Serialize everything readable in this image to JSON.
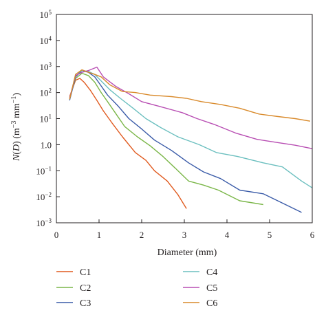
{
  "chart_data": {
    "type": "line",
    "xlabel": "Diameter (mm)",
    "ylabel_parts": {
      "a": "N",
      "b": "(",
      "c": "D",
      "d": ") (m",
      "e": "−3",
      "f": " mm",
      "g": "−1",
      "h": ")"
    },
    "x_range": [
      0,
      6
    ],
    "x_ticks": [
      "0",
      "1",
      "2",
      "3",
      "4",
      "5",
      "6"
    ],
    "y_scale": "log",
    "y_range": [
      0.001,
      100000
    ],
    "y_ticks": [
      {
        "base": "10",
        "exp": "5"
      },
      {
        "base": "10",
        "exp": "4"
      },
      {
        "base": "10",
        "exp": "3"
      },
      {
        "base": "10",
        "exp": "2"
      },
      {
        "base": "10",
        "exp": "1"
      },
      {
        "base": "1.0",
        "exp": ""
      },
      {
        "base": "10",
        "exp": "−1"
      },
      {
        "base": "10",
        "exp": "−2"
      },
      {
        "base": "10",
        "exp": "−3"
      }
    ],
    "legend_position": "bottom",
    "series": [
      {
        "name": "C1",
        "color": "#e05a1f",
        "x": [
          0.31,
          0.45,
          0.55,
          0.65,
          0.8,
          0.95,
          1.1,
          1.3,
          1.55,
          1.85,
          2.1,
          2.3,
          2.6,
          2.85,
          3.05
        ],
        "y": [
          70,
          300,
          350,
          250,
          120,
          50,
          20,
          7,
          2,
          0.5,
          0.25,
          0.1,
          0.04,
          0.012,
          0.0035
        ]
      },
      {
        "name": "C2",
        "color": "#7ab648",
        "x": [
          0.31,
          0.45,
          0.6,
          0.75,
          0.9,
          1.05,
          1.2,
          1.4,
          1.6,
          1.9,
          2.2,
          2.5,
          2.8,
          3.1,
          3.45,
          3.8,
          4.3,
          4.85
        ],
        "y": [
          60,
          350,
          550,
          450,
          250,
          100,
          45,
          15,
          5,
          2,
          0.9,
          0.35,
          0.12,
          0.04,
          0.028,
          0.018,
          0.007,
          0.005
        ]
      },
      {
        "name": "C3",
        "color": "#3a5ba8",
        "x": [
          0.31,
          0.45,
          0.6,
          0.75,
          0.9,
          1.05,
          1.2,
          1.45,
          1.7,
          2.0,
          2.3,
          2.7,
          3.1,
          3.45,
          3.85,
          4.3,
          4.85,
          5.75
        ],
        "y": [
          50,
          400,
          700,
          600,
          400,
          180,
          80,
          30,
          10,
          4,
          1.5,
          0.6,
          0.2,
          0.09,
          0.05,
          0.018,
          0.013,
          0.0025
        ]
      },
      {
        "name": "C4",
        "color": "#6bbfbf",
        "x": [
          0.31,
          0.45,
          0.6,
          0.75,
          0.9,
          1.05,
          1.25,
          1.5,
          1.8,
          2.1,
          2.45,
          2.85,
          3.35,
          3.75,
          4.25,
          4.85,
          5.3,
          5.75,
          6.0
        ],
        "y": [
          55,
          500,
          700,
          650,
          500,
          280,
          130,
          60,
          25,
          10,
          4.5,
          2,
          1,
          0.5,
          0.35,
          0.2,
          0.14,
          0.04,
          0.022
        ]
      },
      {
        "name": "C5",
        "color": "#b84eb3",
        "x": [
          0.31,
          0.45,
          0.6,
          0.75,
          0.95,
          1.1,
          1.4,
          1.7,
          2.0,
          2.4,
          2.95,
          3.3,
          3.7,
          4.2,
          4.7,
          5.2,
          5.6,
          6.0
        ],
        "y": [
          60,
          450,
          600,
          700,
          950,
          400,
          170,
          90,
          45,
          30,
          17,
          10,
          6,
          2.8,
          1.6,
          1.2,
          0.95,
          0.7
        ]
      },
      {
        "name": "C6",
        "color": "#d98a2b",
        "x": [
          0.31,
          0.45,
          0.6,
          0.75,
          0.9,
          1.05,
          1.25,
          1.55,
          1.85,
          2.2,
          2.7,
          3.05,
          3.4,
          3.85,
          4.3,
          4.75,
          5.2,
          5.6,
          5.95
        ],
        "y": [
          55,
          500,
          750,
          600,
          500,
          400,
          200,
          110,
          100,
          80,
          70,
          60,
          45,
          35,
          25,
          15,
          12,
          10,
          8
        ]
      }
    ]
  }
}
